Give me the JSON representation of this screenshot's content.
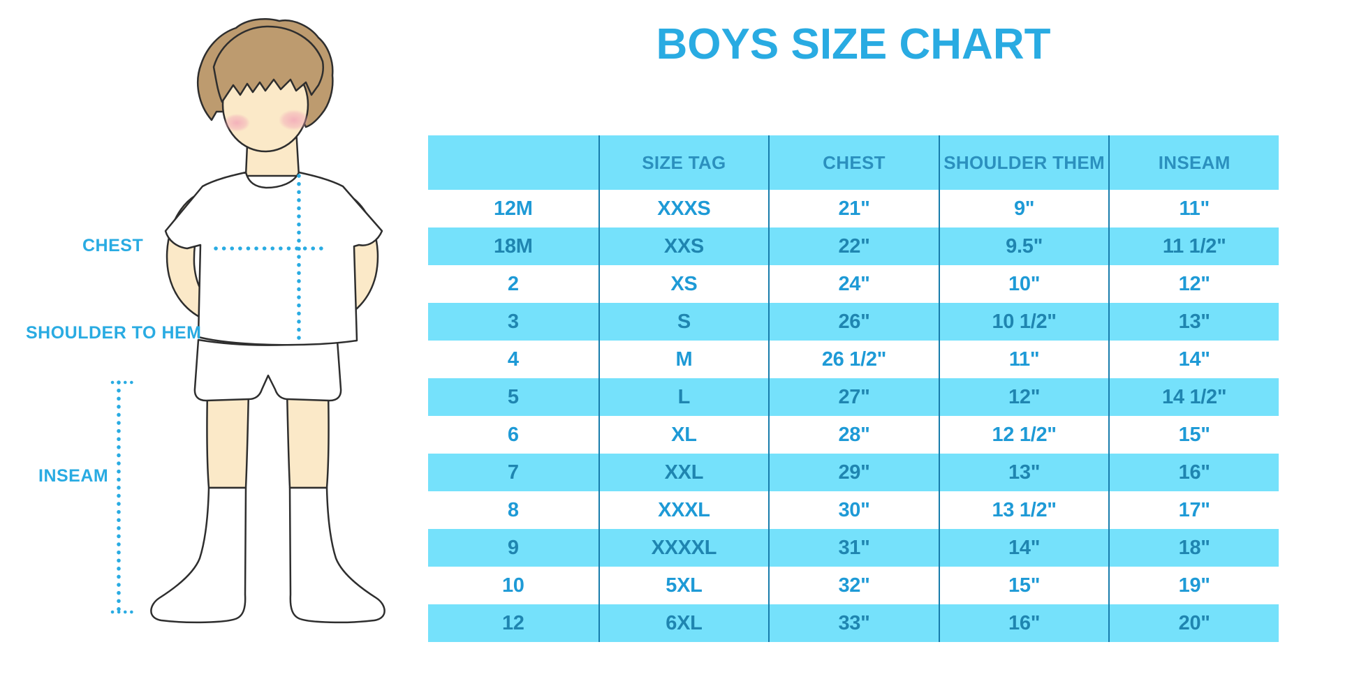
{
  "title": "BOYS SIZE CHART",
  "colors": {
    "title_blue": "#29ABE2",
    "label": "#29ABE2",
    "dotted_line": "#29ABE2",
    "header_bg": "#75E1FB",
    "row_alt_bg": "#75E1FB",
    "header_text": "#2B90BE",
    "cell_text": "#1E9AD6",
    "cell_text_alt": "#1F85B0",
    "divider": "#177CAB",
    "hair": "#BD9B6F",
    "skin": "#FBE9C8",
    "blush": "#F2A8B8",
    "sock": "#FFFFFF",
    "shirt": "#FFFFFF"
  },
  "figure": {
    "labels": [
      {
        "id": "chest",
        "text": "CHEST"
      },
      {
        "id": "shoulder-to-hem",
        "text": "SHOULDER TO HEM"
      },
      {
        "id": "inseam",
        "text": "INSEAM"
      }
    ]
  },
  "table": {
    "headers": [
      "",
      "SIZE TAG",
      "CHEST",
      "SHOULDER THEM",
      "INSEAM"
    ],
    "rows": [
      [
        "12M",
        "XXXS",
        "21\"",
        "9\"",
        "11\""
      ],
      [
        "18M",
        "XXS",
        "22\"",
        "9.5\"",
        "11 1/2\""
      ],
      [
        "2",
        "XS",
        "24\"",
        "10\"",
        "12\""
      ],
      [
        "3",
        "S",
        "26\"",
        "10 1/2\"",
        "13\""
      ],
      [
        "4",
        "M",
        "26 1/2\"",
        "11\"",
        "14\""
      ],
      [
        "5",
        "L",
        "27\"",
        "12\"",
        "14 1/2\""
      ],
      [
        "6",
        "XL",
        "28\"",
        "12 1/2\"",
        "15\""
      ],
      [
        "7",
        "XXL",
        "29\"",
        "13\"",
        "16\""
      ],
      [
        "8",
        "XXXL",
        "30\"",
        "13 1/2\"",
        "17\""
      ],
      [
        "9",
        "XXXXL",
        "31\"",
        "14\"",
        "18\""
      ],
      [
        "10",
        "5XL",
        "32\"",
        "15\"",
        "19\""
      ],
      [
        "12",
        "6XL",
        "33\"",
        "16\"",
        "20\""
      ]
    ]
  },
  "chart_data": {
    "type": "table",
    "title": "BOYS SIZE CHART",
    "columns": [
      "",
      "SIZE TAG",
      "CHEST",
      "SHOULDER THEM",
      "INSEAM"
    ],
    "rows": [
      [
        "12M",
        "XXXS",
        "21\"",
        "9\"",
        "11\""
      ],
      [
        "18M",
        "XXS",
        "22\"",
        "9.5\"",
        "11 1/2\""
      ],
      [
        "2",
        "XS",
        "24\"",
        "10\"",
        "12\""
      ],
      [
        "3",
        "S",
        "26\"",
        "10 1/2\"",
        "13\""
      ],
      [
        "4",
        "M",
        "26 1/2\"",
        "11\"",
        "14\""
      ],
      [
        "5",
        "L",
        "27\"",
        "12\"",
        "14 1/2\""
      ],
      [
        "6",
        "XL",
        "28\"",
        "12 1/2\"",
        "15\""
      ],
      [
        "7",
        "XXL",
        "29\"",
        "13\"",
        "16\""
      ],
      [
        "8",
        "XXXL",
        "30\"",
        "13 1/2\"",
        "17\""
      ],
      [
        "9",
        "XXXXL",
        "31\"",
        "14\"",
        "18\""
      ],
      [
        "10",
        "5XL",
        "32\"",
        "15\"",
        "19\""
      ],
      [
        "12",
        "6XL",
        "33\"",
        "16\"",
        "20\""
      ]
    ]
  }
}
